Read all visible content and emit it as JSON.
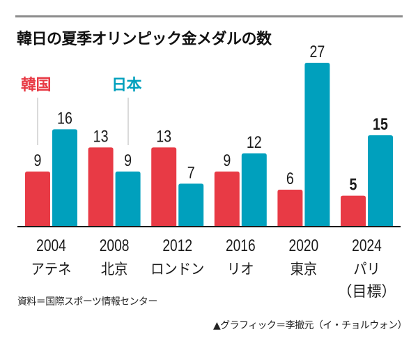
{
  "chart_data": {
    "type": "bar",
    "title": "韓日の夏季オリンピック金メダルの数",
    "xlabel": "",
    "ylabel": "",
    "ylim": [
      0,
      27
    ],
    "grid": false,
    "legend_placement": "top-left",
    "categories": [
      {
        "year": "2004",
        "city": "アテネ",
        "note": ""
      },
      {
        "year": "2008",
        "city": "北京",
        "note": ""
      },
      {
        "year": "2012",
        "city": "ロンドン",
        "note": ""
      },
      {
        "year": "2016",
        "city": "リオ",
        "note": ""
      },
      {
        "year": "2020",
        "city": "東京",
        "note": ""
      },
      {
        "year": "2024",
        "city": "パリ",
        "note": "（目標）"
      }
    ],
    "series": [
      {
        "name": "韓国",
        "color": "#e83a45",
        "values": [
          9,
          13,
          13,
          9,
          6,
          5
        ],
        "bold_labels": [
          false,
          false,
          false,
          false,
          false,
          true
        ]
      },
      {
        "name": "日本",
        "color": "#00a0bd",
        "values": [
          16,
          9,
          7,
          12,
          27,
          15
        ],
        "bold_labels": [
          false,
          false,
          false,
          false,
          false,
          true
        ]
      }
    ]
  },
  "source": "資料＝国際スポーツ情報センター",
  "credit": "▲グラフィック＝李撤元（イ・チョルウォン）"
}
